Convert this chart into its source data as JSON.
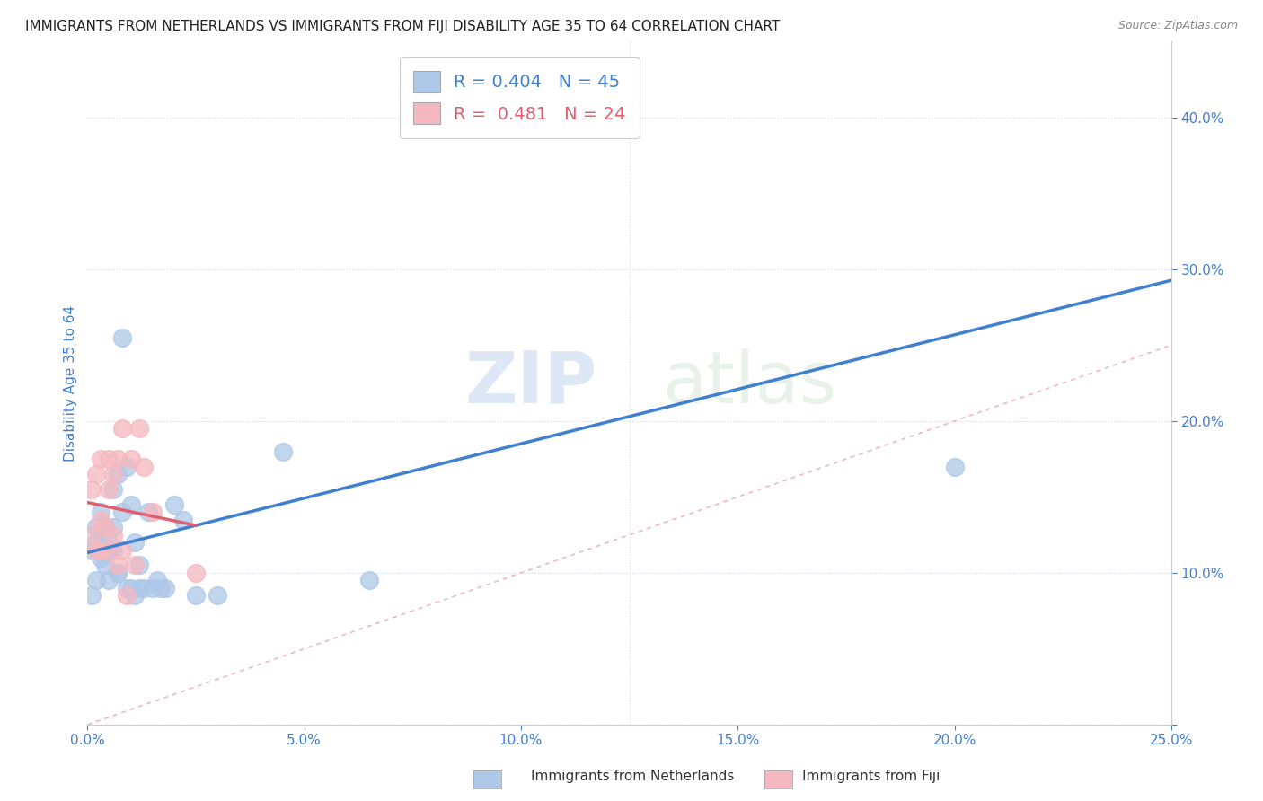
{
  "title": "IMMIGRANTS FROM NETHERLANDS VS IMMIGRANTS FROM FIJI DISABILITY AGE 35 TO 64 CORRELATION CHART",
  "source": "Source: ZipAtlas.com",
  "ylabel": "Disability Age 35 to 64",
  "xlim": [
    0.0,
    0.25
  ],
  "ylim": [
    0.0,
    0.45
  ],
  "xticks": [
    0.0,
    0.05,
    0.1,
    0.15,
    0.2,
    0.25
  ],
  "yticks": [
    0.0,
    0.1,
    0.2,
    0.3,
    0.4
  ],
  "legend_netherlands": "R = 0.404   N = 45",
  "legend_fiji": "R =  0.481   N = 24",
  "legend_label_netherlands": "Immigrants from Netherlands",
  "legend_label_fiji": "Immigrants from Fiji",
  "netherlands_color": "#adc8e8",
  "fiji_color": "#f5b8c0",
  "netherlands_line_color": "#4080d0",
  "fiji_line_color": "#e06070",
  "diagonal_color": "#f0b8c0",
  "background_color": "#ffffff",
  "watermark_zip": "ZIP",
  "watermark_atlas": "atlas",
  "nl_x": [
    0.001,
    0.001,
    0.002,
    0.002,
    0.002,
    0.003,
    0.003,
    0.003,
    0.003,
    0.004,
    0.004,
    0.004,
    0.005,
    0.005,
    0.005,
    0.006,
    0.006,
    0.006,
    0.007,
    0.007,
    0.007,
    0.008,
    0.008,
    0.009,
    0.009,
    0.01,
    0.01,
    0.011,
    0.011,
    0.012,
    0.012,
    0.013,
    0.014,
    0.015,
    0.016,
    0.017,
    0.018,
    0.02,
    0.022,
    0.025,
    0.03,
    0.045,
    0.065,
    0.11,
    0.2
  ],
  "nl_y": [
    0.115,
    0.085,
    0.12,
    0.095,
    0.13,
    0.11,
    0.125,
    0.115,
    0.14,
    0.105,
    0.13,
    0.115,
    0.12,
    0.095,
    0.115,
    0.13,
    0.115,
    0.155,
    0.1,
    0.165,
    0.1,
    0.255,
    0.14,
    0.17,
    0.09,
    0.09,
    0.145,
    0.085,
    0.12,
    0.09,
    0.105,
    0.09,
    0.14,
    0.09,
    0.095,
    0.09,
    0.09,
    0.145,
    0.135,
    0.085,
    0.085,
    0.18,
    0.095,
    0.41,
    0.17
  ],
  "fj_x": [
    0.001,
    0.001,
    0.002,
    0.002,
    0.003,
    0.003,
    0.003,
    0.004,
    0.004,
    0.005,
    0.005,
    0.006,
    0.006,
    0.007,
    0.007,
    0.008,
    0.008,
    0.009,
    0.01,
    0.011,
    0.012,
    0.013,
    0.015,
    0.025
  ],
  "fj_y": [
    0.155,
    0.125,
    0.165,
    0.115,
    0.135,
    0.115,
    0.175,
    0.13,
    0.115,
    0.175,
    0.155,
    0.125,
    0.165,
    0.105,
    0.175,
    0.115,
    0.195,
    0.085,
    0.175,
    0.105,
    0.195,
    0.17,
    0.14,
    0.1
  ]
}
